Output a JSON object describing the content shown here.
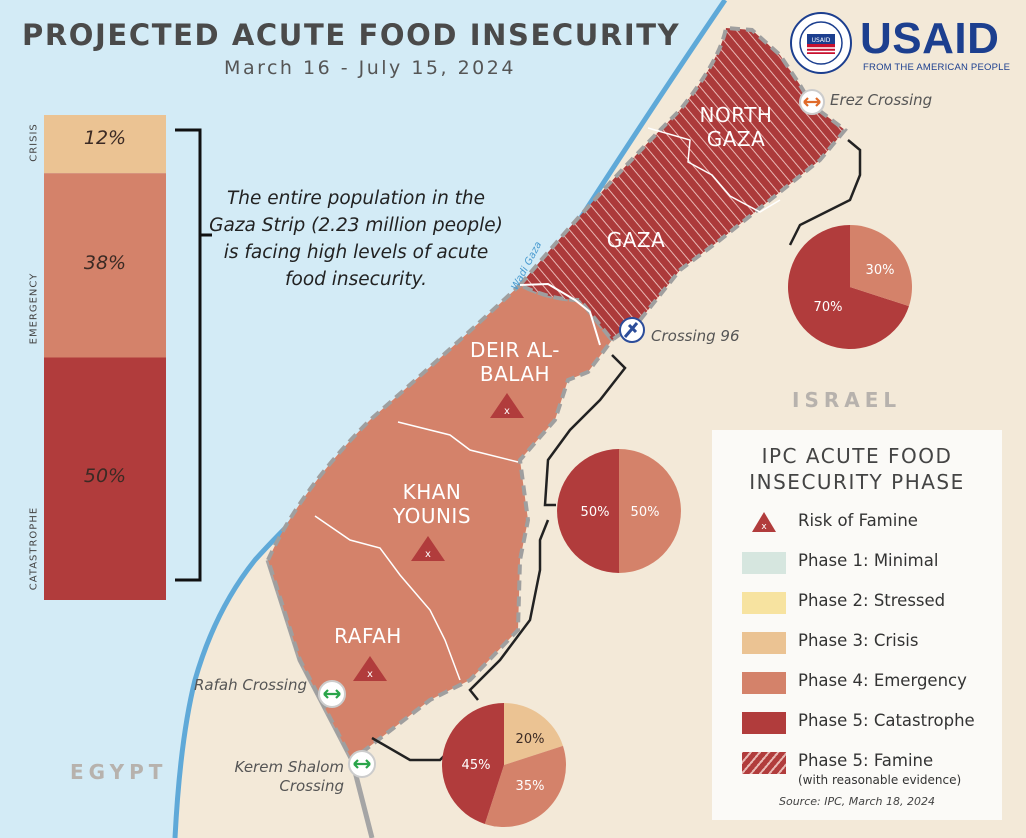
{
  "header": {
    "title": "PROJECTED ACUTE FOOD INSECURITY",
    "subtitle": "March 16 - July 15, 2024"
  },
  "logo": {
    "wordmark": "USAID",
    "tagline": "FROM THE AMERICAN PEOPLE",
    "seal_text": "UNITED STATES AGENCY INTERNATIONAL DEVELOPMENT"
  },
  "population_bar": {
    "segments": [
      {
        "label": "CRISIS",
        "value": "12%",
        "fraction": 0.12,
        "color": "#ebc393"
      },
      {
        "label": "EMERGENCY",
        "value": "38%",
        "fraction": 0.38,
        "color": "#d4826a"
      },
      {
        "label": "CATASTROPHE",
        "value": "50%",
        "fraction": 0.5,
        "color": "#b13c3c"
      }
    ],
    "note": "The entire population in the Gaza Strip (2.23 million people) is facing high levels of acute food insecurity."
  },
  "regions": {
    "north_gaza": "NORTH GAZA",
    "gaza": "GAZA",
    "deir_al_balah": "DEIR AL-BALAH",
    "khan_younis": "KHAN YOUNIS",
    "rafah": "RAFAH",
    "wadi": "Wadi Gaza"
  },
  "countries": {
    "israel": "ISRAEL",
    "egypt": "EGYPT"
  },
  "crossings": {
    "erez": "Erez Crossing",
    "crossing96": "Crossing 96",
    "rafah": "Rafah Crossing",
    "kerem_shalom": "Kerem Shalom Crossing"
  },
  "pies": {
    "north": {
      "slices": [
        {
          "phase": "Catastrophe",
          "value": 70,
          "label": "70%",
          "color": "#b13c3c"
        },
        {
          "phase": "Emergency",
          "value": 30,
          "label": "30%",
          "color": "#d4826a"
        }
      ]
    },
    "middle": {
      "slices": [
        {
          "phase": "Catastrophe",
          "value": 50,
          "label": "50%",
          "color": "#b13c3c"
        },
        {
          "phase": "Emergency",
          "value": 50,
          "label": "50%",
          "color": "#d4826a"
        }
      ]
    },
    "south": {
      "slices": [
        {
          "phase": "Crisis",
          "value": 20,
          "label": "20%",
          "color": "#ebc393"
        },
        {
          "phase": "Emergency",
          "value": 35,
          "label": "35%",
          "color": "#d4826a"
        },
        {
          "phase": "Catastrophe",
          "value": 45,
          "label": "45%",
          "color": "#b13c3c"
        }
      ]
    }
  },
  "legend": {
    "title_line1": "IPC ACUTE FOOD",
    "title_line2": "INSECURITY PHASE",
    "items": [
      {
        "label": "Risk of Famine",
        "sub": "",
        "color": "#b13c3c",
        "kind": "triangle"
      },
      {
        "label": "Phase 1: Minimal",
        "sub": "",
        "color": "#d6e6df",
        "kind": "box"
      },
      {
        "label": "Phase 2: Stressed",
        "sub": "",
        "color": "#f7e3a0",
        "kind": "box"
      },
      {
        "label": "Phase 3: Crisis",
        "sub": "",
        "color": "#ebc393",
        "kind": "box"
      },
      {
        "label": "Phase 4: Emergency",
        "sub": "",
        "color": "#d4826a",
        "kind": "box"
      },
      {
        "label": "Phase 5: Catastrophe",
        "sub": "",
        "color": "#b13c3c",
        "kind": "box"
      },
      {
        "label": "Phase 5: Famine",
        "sub": "(with reasonable evidence)",
        "color": "#b13c3c",
        "kind": "hatch"
      }
    ],
    "source": "Source: IPC, March 18, 2024"
  },
  "colors": {
    "sea": "#d3ebf6",
    "land": "#f3e9d8",
    "famine": "#ac3a3a",
    "emergency": "#d4826a",
    "border": "#9f9f9f"
  }
}
